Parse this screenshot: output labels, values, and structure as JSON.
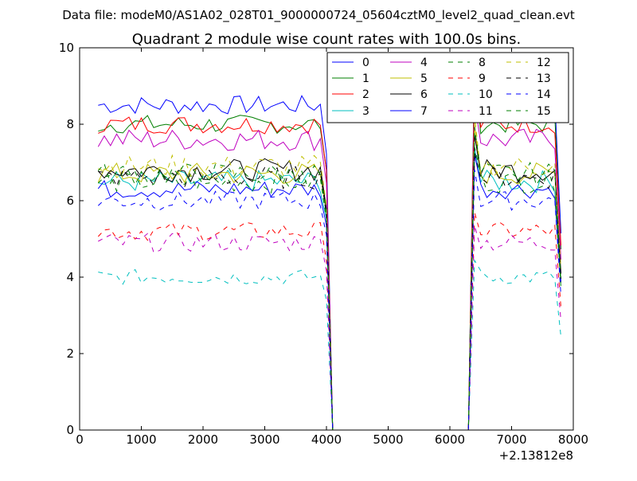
{
  "suptitle": "Data file: modeM0/AS1A02_028T01_9000000724_05604cztM0_level2_quad_clean.evt",
  "chart_data": {
    "type": "line",
    "title": "Quadrant 2 module wise count rates with 100.0s bins.",
    "xlabel": "",
    "ylabel": "",
    "xlim": [
      0,
      8000
    ],
    "ylim": [
      0,
      10
    ],
    "x_ticks": [
      0,
      1000,
      2000,
      3000,
      4000,
      5000,
      6000,
      7000,
      8000
    ],
    "x_tick_labels": [
      "0",
      "1000",
      "2000",
      "3000",
      "4000",
      "5000",
      "6000",
      "7000",
      "8000"
    ],
    "y_ticks": [
      0,
      2,
      4,
      6,
      8,
      10
    ],
    "y_tick_labels": [
      "0",
      "2",
      "4",
      "6",
      "8",
      "10"
    ],
    "x_offset_label": "+2.13812e8",
    "legend_position": "top-right",
    "legend_columns": 4,
    "x": [
      300,
      400,
      500,
      600,
      700,
      800,
      900,
      1000,
      1100,
      1200,
      1300,
      1400,
      1500,
      1600,
      1700,
      1800,
      1900,
      2000,
      2100,
      2200,
      2300,
      2400,
      2500,
      2600,
      2700,
      2800,
      2900,
      3000,
      3100,
      3200,
      3300,
      3400,
      3500,
      3600,
      3700,
      3800,
      3900,
      4000,
      4100,
      4200,
      4300,
      4400,
      4500,
      4600,
      4700,
      4800,
      4900,
      5000,
      5100,
      5200,
      5300,
      5400,
      5500,
      5600,
      5700,
      5800,
      5900,
      6000,
      6100,
      6200,
      6300,
      6400,
      6500,
      6600,
      6700,
      6800,
      6900,
      7000,
      7100,
      7200,
      7300,
      7400,
      7500,
      7600,
      7700,
      7800
    ],
    "series": [
      {
        "name": "0",
        "color": "#0000ff",
        "dash": "solid",
        "base": 8.5,
        "amp": 0.25
      },
      {
        "name": "1",
        "color": "#007f00",
        "dash": "solid",
        "base": 8.0,
        "amp": 0.25
      },
      {
        "name": "2",
        "color": "#ff0000",
        "dash": "solid",
        "base": 8.0,
        "amp": 0.25
      },
      {
        "name": "3",
        "color": "#00bfbf",
        "dash": "solid",
        "base": 6.5,
        "amp": 0.3
      },
      {
        "name": "4",
        "color": "#bf00bf",
        "dash": "solid",
        "base": 7.6,
        "amp": 0.3
      },
      {
        "name": "5",
        "color": "#bfbf00",
        "dash": "solid",
        "base": 6.7,
        "amp": 0.3
      },
      {
        "name": "6",
        "color": "#000000",
        "dash": "solid",
        "base": 6.8,
        "amp": 0.3
      },
      {
        "name": "7",
        "color": "#0000ff",
        "dash": "solid",
        "base": 6.3,
        "amp": 0.25
      },
      {
        "name": "8",
        "color": "#007f00",
        "dash": "dashed",
        "base": 6.5,
        "amp": 0.3
      },
      {
        "name": "9",
        "color": "#ff0000",
        "dash": "dashed",
        "base": 5.2,
        "amp": 0.25
      },
      {
        "name": "10",
        "color": "#00bfbf",
        "dash": "dashed",
        "base": 4.0,
        "amp": 0.2
      },
      {
        "name": "11",
        "color": "#bf00bf",
        "dash": "dashed",
        "base": 4.9,
        "amp": 0.25
      },
      {
        "name": "12",
        "color": "#bfbf00",
        "dash": "dashed",
        "base": 6.9,
        "amp": 0.3
      },
      {
        "name": "13",
        "color": "#000000",
        "dash": "dashed",
        "base": 6.6,
        "amp": 0.3
      },
      {
        "name": "14",
        "color": "#0000ff",
        "dash": "dashed",
        "base": 6.0,
        "amp": 0.25
      },
      {
        "name": "15",
        "color": "#007f00",
        "dash": "dashed",
        "base": 6.7,
        "amp": 0.3
      }
    ],
    "gap": {
      "start": 4100,
      "end": 6300,
      "value": 0
    }
  }
}
